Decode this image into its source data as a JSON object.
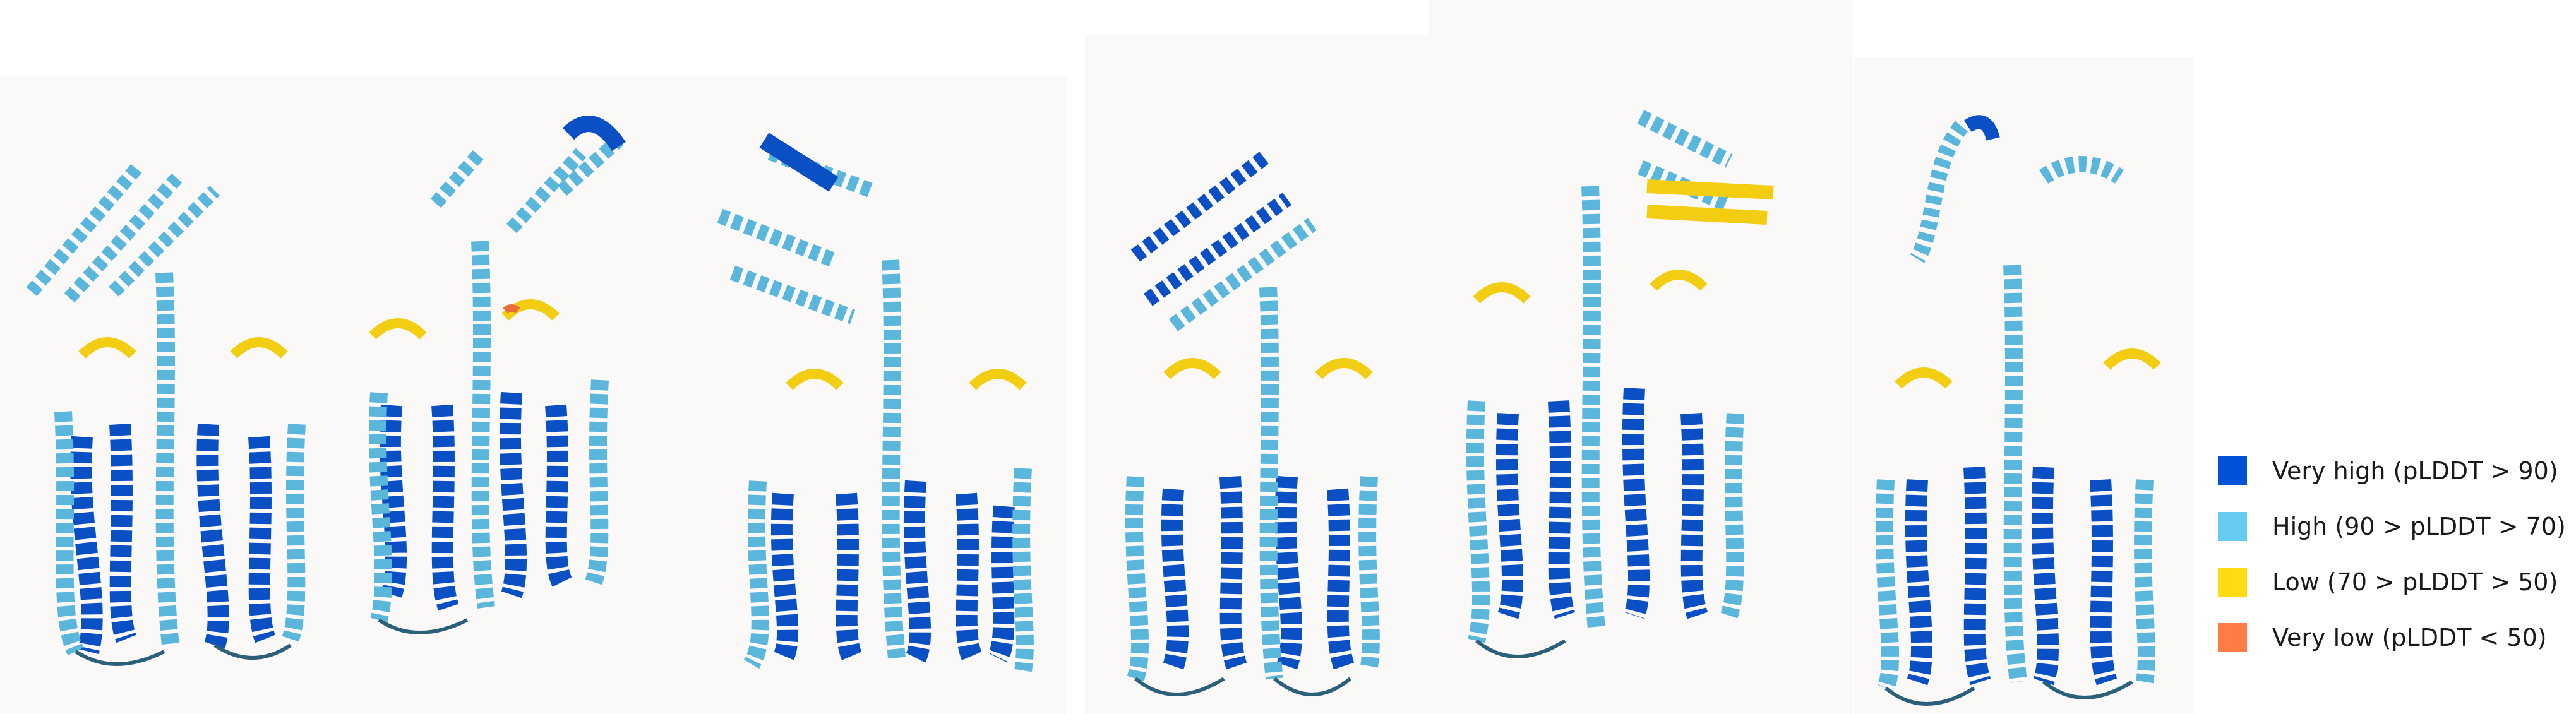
{
  "legend": {
    "items": [
      {
        "label": "Very high (pLDDT > 90)",
        "color": "#0053d6"
      },
      {
        "label": "High (90 > pLDDT > 70)",
        "color": "#65cbf3"
      },
      {
        "label": "Low (70 > pLDDT > 50)",
        "color": "#ffdb13"
      },
      {
        "label": "Very low (pLDDT < 50)",
        "color": "#ff7d45"
      }
    ]
  },
  "colors": {
    "very_high": "#0a4fc4",
    "high": "#5bb6dc",
    "low": "#f2cd12",
    "very_low": "#e8703a",
    "outline_dark": "#2c5f7a",
    "panel_background": "#fbf9f8"
  },
  "structures": [
    {
      "name": "structure-1",
      "icon": "ribbon-protein-model"
    },
    {
      "name": "structure-2",
      "icon": "ribbon-protein-model"
    },
    {
      "name": "structure-3",
      "icon": "ribbon-protein-model"
    },
    {
      "name": "structure-4",
      "icon": "ribbon-protein-model"
    },
    {
      "name": "structure-5",
      "icon": "ribbon-protein-model"
    },
    {
      "name": "structure-6",
      "icon": "ribbon-protein-model"
    }
  ]
}
